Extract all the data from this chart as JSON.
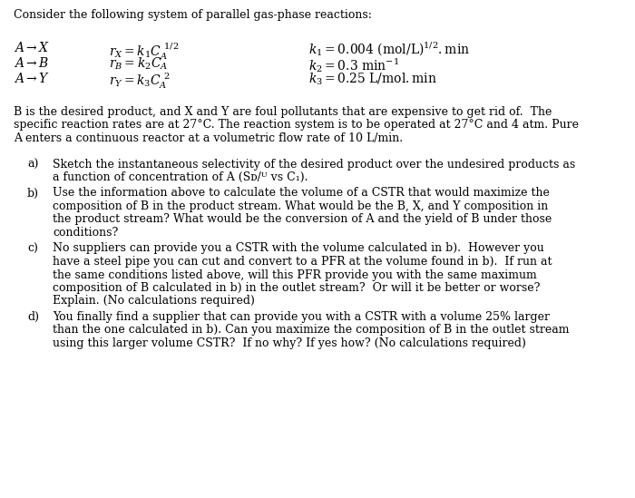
{
  "background_color": "#ffffff",
  "title_line": "Consider the following system of parallel gas-phase reactions:",
  "para1": "B is the desired product, and X and Y are foul pollutants that are expensive to get rid of.  The",
  "para2": "specific reaction rates are at 27°C. The reaction system is to be operated at 27°C and 4 atm. Pure",
  "para3": "A enters a continuous reactor at a volumetric flow rate of 10 L/min.",
  "parts": [
    [
      "Sketch the instantaneous selectivity of the desired product over the undesired products as",
      "a function of concentration of A (Sᴅ/ᵁ vs C₁)."
    ],
    [
      "Use the information above to calculate the volume of a CSTR that would maximize the",
      "composition of B in the product stream. What would be the B, X, and Y composition in",
      "the product stream? What would be the conversion of A and the yield of B under those",
      "conditions?"
    ],
    [
      "No suppliers can provide you a CSTR with the volume calculated in b).  However you",
      "have a steel pipe you can cut and convert to a PFR at the volume found in b).  If run at",
      "the same conditions listed above, will this PFR provide you with the same maximum",
      "composition of B calculated in b) in the outlet stream?  Or will it be better or worse?",
      "Explain. (No calculations required)"
    ],
    [
      "You finally find a supplier that can provide you with a CSTR with a volume 25% larger",
      "than the one calculated in b). Can you maximize the composition of B in the outlet stream",
      "using this larger volume CSTR?  If no why? If yes how? (No calculations required)"
    ]
  ],
  "part_labels": [
    "a)",
    "b)",
    "c)",
    "d)"
  ],
  "font_size": 9.0,
  "reaction_font_size": 10.0
}
